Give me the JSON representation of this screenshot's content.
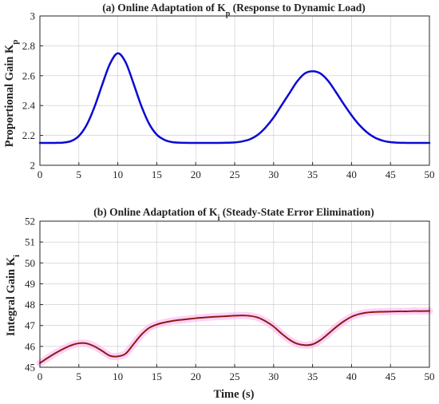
{
  "chart_data": [
    {
      "type": "line",
      "title_main": "(a) Online Adaptation of K",
      "title_sub": "p",
      "title_tail": " (Response to Dynamic Load)",
      "xlabel": "",
      "ylabel_main": "Proportional Gain K",
      "ylabel_sub": "p",
      "xlim": [
        0,
        50
      ],
      "ylim": [
        2,
        3
      ],
      "xticks": [
        "0",
        "5",
        "10",
        "15",
        "20",
        "25",
        "30",
        "35",
        "40",
        "45",
        "50"
      ],
      "yticks": [
        "2",
        "2.2",
        "2.4",
        "2.6",
        "2.8",
        "3"
      ],
      "grid": true,
      "line_color": "#0a0ad2",
      "series": [
        {
          "x": [
            0,
            1,
            2,
            3,
            4,
            5,
            6,
            7,
            8,
            9,
            10,
            11,
            12,
            13,
            14,
            15,
            16,
            17,
            18,
            19,
            20,
            21,
            22,
            23,
            24,
            25,
            26,
            27,
            28,
            29,
            30,
            31,
            32,
            33,
            34,
            35,
            36,
            37,
            38,
            39,
            40,
            41,
            42,
            43,
            44,
            45,
            46,
            47,
            48,
            49,
            50
          ],
          "values": [
            2.15,
            2.15,
            2.15,
            2.152,
            2.162,
            2.196,
            2.27,
            2.39,
            2.54,
            2.68,
            2.75,
            2.69,
            2.55,
            2.4,
            2.28,
            2.205,
            2.17,
            2.155,
            2.151,
            2.15,
            2.15,
            2.15,
            2.15,
            2.15,
            2.151,
            2.153,
            2.16,
            2.175,
            2.205,
            2.255,
            2.32,
            2.4,
            2.48,
            2.56,
            2.615,
            2.63,
            2.615,
            2.565,
            2.49,
            2.41,
            2.335,
            2.27,
            2.22,
            2.185,
            2.165,
            2.155,
            2.151,
            2.15,
            2.15,
            2.15,
            2.15
          ]
        }
      ]
    },
    {
      "type": "line",
      "title_main": "(b) Online Adaptation of K",
      "title_sub": "i",
      "title_tail": " (Steady-State Error Elimination)",
      "xlabel": "Time (s)",
      "ylabel_main": "Integral Gain K",
      "ylabel_sub": "i",
      "xlim": [
        0,
        50
      ],
      "ylim": [
        45,
        52
      ],
      "xticks": [
        "0",
        "5",
        "10",
        "15",
        "20",
        "25",
        "30",
        "35",
        "40",
        "45",
        "50"
      ],
      "yticks": [
        "45",
        "46",
        "47",
        "48",
        "49",
        "50",
        "51",
        "52"
      ],
      "grid": true,
      "line_color": "#8b1a10",
      "band_color": "#ff9cf0",
      "series": [
        {
          "x": [
            0,
            1,
            2,
            3,
            4,
            5,
            6,
            7,
            8,
            9,
            10,
            11,
            12,
            13,
            14,
            15,
            16,
            17,
            18,
            19,
            20,
            21,
            22,
            23,
            24,
            25,
            26,
            27,
            28,
            29,
            30,
            31,
            32,
            33,
            34,
            35,
            36,
            37,
            38,
            39,
            40,
            41,
            42,
            43,
            44,
            45,
            46,
            47,
            48,
            49,
            50
          ],
          "values": [
            45.2,
            45.45,
            45.68,
            45.88,
            46.05,
            46.15,
            46.14,
            46.0,
            45.78,
            45.55,
            45.52,
            45.65,
            46.1,
            46.55,
            46.88,
            47.05,
            47.15,
            47.22,
            47.27,
            47.31,
            47.35,
            47.38,
            47.41,
            47.43,
            47.45,
            47.47,
            47.48,
            47.46,
            47.38,
            47.2,
            46.95,
            46.62,
            46.33,
            46.13,
            46.06,
            46.1,
            46.3,
            46.6,
            46.92,
            47.2,
            47.42,
            47.55,
            47.62,
            47.65,
            47.66,
            47.67,
            47.68,
            47.68,
            47.69,
            47.69,
            47.7
          ]
        }
      ]
    }
  ]
}
